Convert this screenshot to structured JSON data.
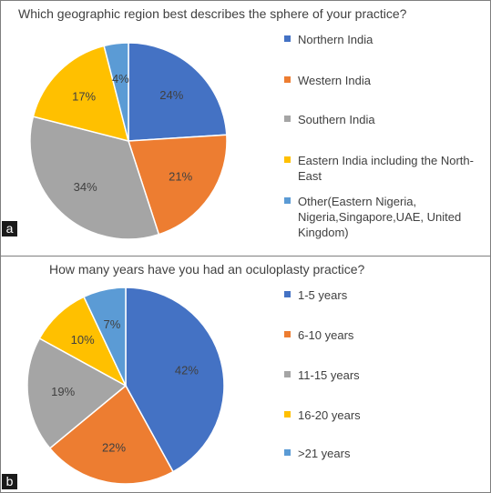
{
  "chart_data": [
    {
      "type": "pie",
      "panel": "a",
      "title": "Which geographic region best describes the sphere of your practice?",
      "slices": [
        {
          "label": "Northern India",
          "value": 24,
          "value_label": "24%",
          "color": "#4472C4"
        },
        {
          "label": "Western India",
          "value": 21,
          "value_label": "21%",
          "color": "#ED7D31"
        },
        {
          "label": "Southern India",
          "value": 34,
          "value_label": "34%",
          "color": "#A5A5A5"
        },
        {
          "label": "Eastern India including the North-East",
          "value": 17,
          "value_label": "17%",
          "color": "#FFC000"
        },
        {
          "label": "Other(Eastern Nigeria, Nigeria,Singapore,UAE, United Kingdom)",
          "value": 4,
          "value_label": "4%",
          "color": "#5B9BD5"
        }
      ],
      "legend_lines": [
        [
          "Northern India"
        ],
        [
          "Western India"
        ],
        [
          "Southern India"
        ],
        [
          "Eastern India including the North-",
          "East"
        ],
        [
          "Other(Eastern Nigeria,",
          "Nigeria,Singapore,UAE, United",
          "Kingdom)"
        ]
      ],
      "legend_position": "right"
    },
    {
      "type": "pie",
      "panel": "b",
      "title": "How many years have you had an oculoplasty practice?",
      "slices": [
        {
          "label": "1-5 years",
          "value": 42,
          "value_label": "42%",
          "color": "#4472C4"
        },
        {
          "label": "6-10 years",
          "value": 22,
          "value_label": "22%",
          "color": "#ED7D31"
        },
        {
          "label": "11-15 years",
          "value": 19,
          "value_label": "19%",
          "color": "#A5A5A5"
        },
        {
          "label": "16-20 years",
          "value": 10,
          "value_label": "10%",
          "color": "#FFC000"
        },
        {
          "label": ">21 years",
          "value": 7,
          "value_label": "7%",
          "color": "#5B9BD5"
        }
      ],
      "legend_lines": [
        [
          "1-5 years"
        ],
        [
          "6-10 years"
        ],
        [
          "11-15 years"
        ],
        [
          "16-20 years"
        ],
        [
          ">21 years"
        ]
      ],
      "legend_position": "right"
    }
  ]
}
